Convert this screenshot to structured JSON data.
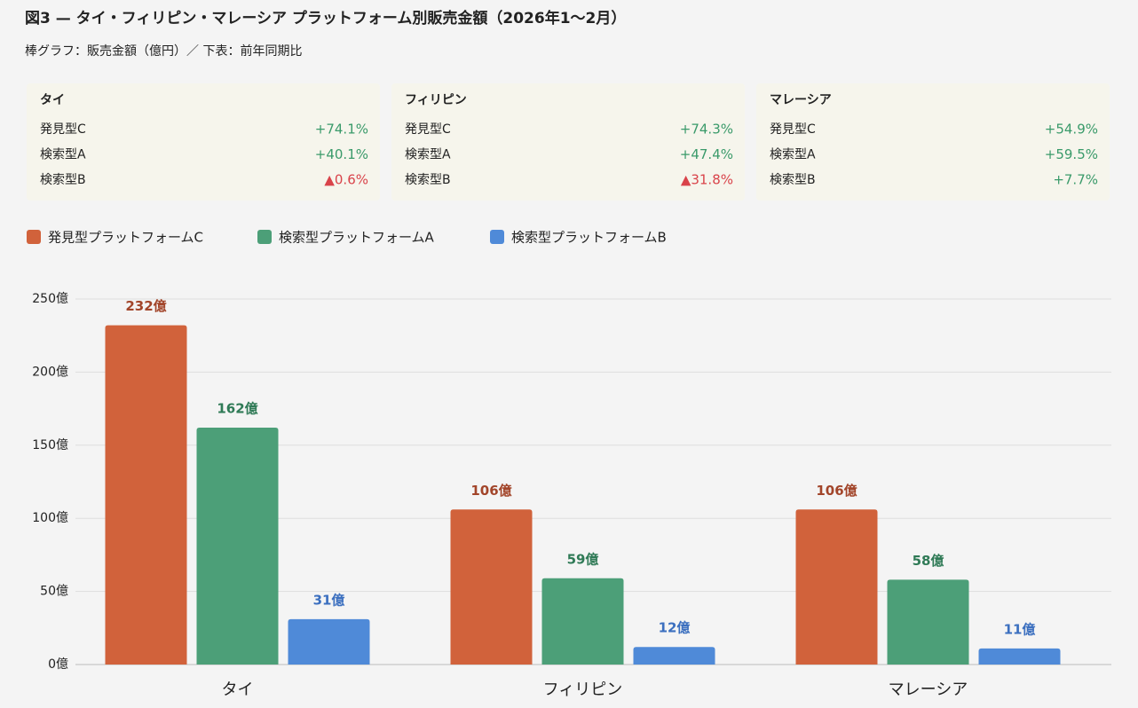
{
  "chart_data": {
    "type": "bar",
    "title": "図3 — タイ・フィリピン・マレーシア プラットフォーム別販売金額（2026年1〜2月）",
    "subtitle": "棒グラフ：販売金額（億円）／ 下表：前年同期比",
    "categories": [
      "タイ",
      "フィリピン",
      "マレーシア"
    ],
    "series": [
      {
        "name": "発見型プラットフォームC",
        "color": "#d1623b",
        "label_color": "#a2452a",
        "values": [
          232,
          106,
          106
        ],
        "value_labels": [
          "232億",
          "106億",
          "106億"
        ]
      },
      {
        "name": "検索型プラットフォームA",
        "color": "#4c9f78",
        "label_color": "#2f7a56",
        "values": [
          162,
          59,
          58
        ],
        "value_labels": [
          "162億",
          "59億",
          "58億"
        ]
      },
      {
        "name": "検索型プラットフォームB",
        "color": "#4f8ad8",
        "label_color": "#3b6fbf",
        "values": [
          31,
          12,
          11
        ],
        "value_labels": [
          "31億",
          "12億",
          "11億"
        ]
      }
    ],
    "ylim": [
      0,
      250
    ],
    "yticks": [
      {
        "value": 0,
        "label": "0億"
      },
      {
        "value": 50,
        "label": "50億"
      },
      {
        "value": 100,
        "label": "100億"
      },
      {
        "value": 150,
        "label": "150億"
      },
      {
        "value": 200,
        "label": "200億"
      },
      {
        "value": 250,
        "label": "250億"
      }
    ],
    "grid": true
  },
  "cards": [
    {
      "title": "タイ",
      "rows": [
        {
          "label": "発見型C",
          "value": "+74.1%",
          "color": "#3a9a6a"
        },
        {
          "label": "検索型A",
          "value": "+40.1%",
          "color": "#3a9a6a"
        },
        {
          "label": "検索型B",
          "value": "▲0.6%",
          "color": "#d9434a"
        }
      ]
    },
    {
      "title": "フィリピン",
      "rows": [
        {
          "label": "発見型C",
          "value": "+74.3%",
          "color": "#3a9a6a"
        },
        {
          "label": "検索型A",
          "value": "+47.4%",
          "color": "#3a9a6a"
        },
        {
          "label": "検索型B",
          "value": "▲31.8%",
          "color": "#d9434a"
        }
      ]
    },
    {
      "title": "マレーシア",
      "rows": [
        {
          "label": "発見型C",
          "value": "+54.9%",
          "color": "#3a9a6a"
        },
        {
          "label": "検索型A",
          "value": "+59.5%",
          "color": "#3a9a6a"
        },
        {
          "label": "検索型B",
          "value": "+7.7%",
          "color": "#3a9a6a"
        }
      ]
    }
  ]
}
